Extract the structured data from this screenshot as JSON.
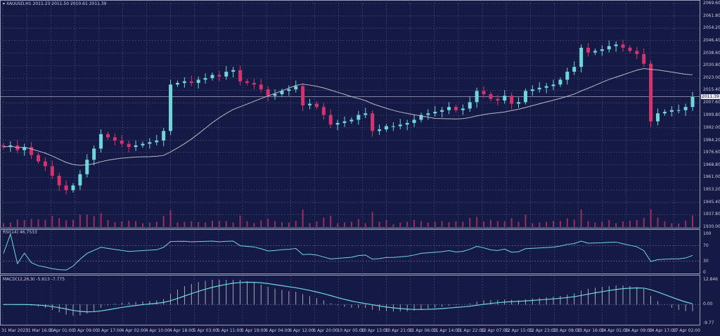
{
  "header": {
    "symbol": "XAUUSD,H1",
    "ohlc": "2011.23 2011.50 2010.61 2011.39"
  },
  "colors": {
    "background": "#151a45",
    "up": "#6fd6dc",
    "down": "#d6336c",
    "grid": "#4a5080",
    "ma": "#b9b9c9",
    "rsi": "#6fd6dc",
    "macd": "#6fd6dc",
    "axis_text": "#c8cbe0"
  },
  "price_axis": {
    "labels": [
      "2069.60",
      "2061.80",
      "2054.20",
      "2046.40",
      "2038.60",
      "2030.80",
      "2023.00",
      "2015.40",
      "2007.60",
      "1999.80",
      "1992.00",
      "1984.20",
      "1976.60",
      "1968.80",
      "1961.00",
      "1953.20",
      "1945.40",
      "1937.80",
      "1930.00"
    ],
    "current": "2011.39"
  },
  "rsi": {
    "label": "RSI(14) 46.7533",
    "levels": [
      "100",
      "70",
      "30",
      "0"
    ]
  },
  "macd": {
    "label": "MACD(12,26,9) -5.613 -7.775",
    "levels": [
      "12.846",
      "0.00",
      "-9.77"
    ]
  },
  "time_axis": [
    "31 Mar 2023",
    "31 Mar 16:00",
    "3 Apr 01:00",
    "3 Apr 09:00",
    "3 Apr 17:00",
    "4 Apr 02:00",
    "4 Apr 10:00",
    "4 Apr 18:00",
    "5 Apr 03:00",
    "5 Apr 11:00",
    "5 Apr 19:00",
    "6 Apr 04:00",
    "6 Apr 12:00",
    "6 Apr 20:00",
    "10 Apr 05:00",
    "10 Apr 13:00",
    "10 Apr 21:00",
    "11 Apr 06:00",
    "11 Apr 14:00",
    "11 Apr 22:00",
    "12 Apr 07:00",
    "12 Apr 15:00",
    "12 Apr 23:00",
    "13 Apr 08:00",
    "13 Apr 16:00",
    "14 Apr 01:00",
    "14 Apr 09:00",
    "14 Apr 17:00",
    "17 Apr 02:00"
  ],
  "chart_data": {
    "type": "candlestick",
    "ylim": [
      1930.0,
      2069.6
    ],
    "moving_average_period": 20,
    "closes": [
      1980,
      1981,
      1978,
      1980,
      1975,
      1971,
      1968,
      1962,
      1956,
      1953,
      1956,
      1963,
      1972,
      1979,
      1988,
      1986,
      1984,
      1982,
      1980,
      1981,
      1982,
      1983,
      1984,
      1990,
      2019,
      2020,
      2021,
      2020,
      2022,
      2023,
      2025,
      2024,
      2027,
      2028,
      2021,
      2020,
      2019,
      2016,
      2012,
      2013,
      2015,
      2016,
      2018,
      2006,
      2007,
      2005,
      2000,
      1994,
      1995,
      1996,
      1997,
      2000,
      2001,
      1990,
      1991,
      1993,
      1993,
      1994,
      1995,
      1997,
      2000,
      2001,
      2002,
      2003,
      2005,
      2003,
      2004,
      2008,
      2015,
      2013,
      2010,
      2009,
      2012,
      2007,
      2008,
      2015,
      2016,
      2017,
      2018,
      2019,
      2022,
      2027,
      2030,
      2042,
      2039,
      2040,
      2041,
      2043,
      2044,
      2042,
      2040,
      2038,
      2032,
      1996,
      2001,
      2002,
      2003,
      2003,
      2005,
      2011.39
    ]
  }
}
